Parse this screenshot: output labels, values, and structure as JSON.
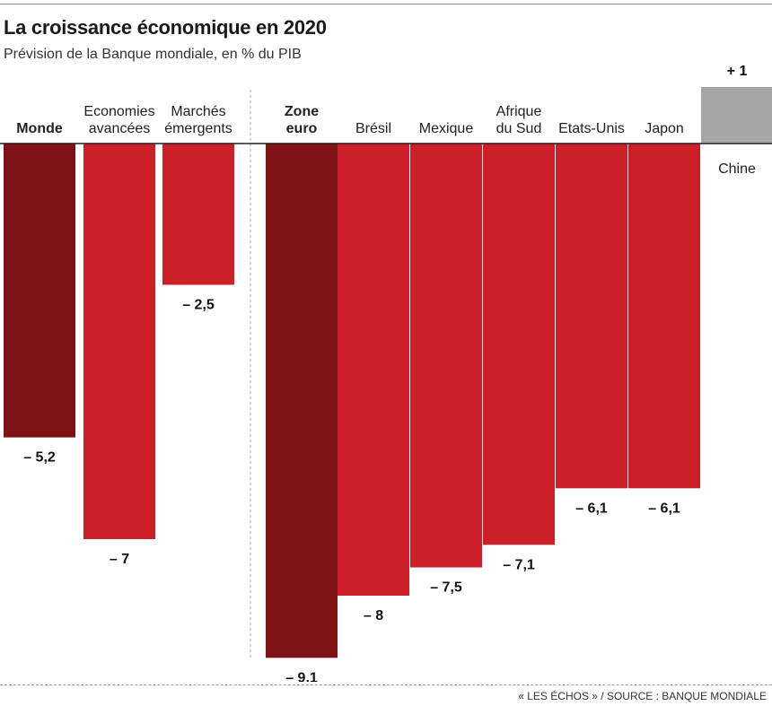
{
  "title": "La croissance économique en 2020",
  "subtitle": "Prévision de la Banque mondiale, en % du PIB",
  "source": "« LES ÉCHOS » / SOURCE : BANQUE MONDIALE",
  "colors": {
    "world_zone": "#7f1215",
    "country": "#cc1f27",
    "positive": "#a6a6a6",
    "axis": "#222222"
  },
  "chart_data": {
    "type": "bar",
    "title": "La croissance économique en 2020",
    "subtitle": "Prévision de la Banque mondiale, en % du PIB",
    "ylim": [
      -9.1,
      1
    ],
    "grid": false,
    "legend": "none",
    "categories": [
      "Monde",
      "Economies avancées",
      "Marchés émergents",
      "Zone euro",
      "Brésil",
      "Mexique",
      "Afrique du Sud",
      "Etats-Unis",
      "Japon",
      "Chine"
    ],
    "values": [
      -5.2,
      -7,
      -2.5,
      -9.1,
      -8,
      -7.5,
      -7.1,
      -6.1,
      -6.1,
      1
    ],
    "bars": [
      {
        "label_lines": [
          "Monde"
        ],
        "value": -5.2,
        "value_label": "– 5,2",
        "bold_label": true,
        "kind": "world_zone"
      },
      {
        "label_lines": [
          "Economies",
          "avancées"
        ],
        "value": -7,
        "value_label": "– 7",
        "bold_label": false,
        "kind": "country"
      },
      {
        "label_lines": [
          "Marchés",
          "émergents"
        ],
        "value": -2.5,
        "value_label": "– 2,5",
        "bold_label": false,
        "kind": "country"
      },
      {
        "label_lines": [
          "Zone",
          "euro"
        ],
        "value": -9.1,
        "value_label": "– 9,1",
        "bold_label": true,
        "kind": "world_zone"
      },
      {
        "label_lines": [
          "Brésil"
        ],
        "value": -8,
        "value_label": "– 8",
        "bold_label": false,
        "kind": "country"
      },
      {
        "label_lines": [
          "Mexique"
        ],
        "value": -7.5,
        "value_label": "– 7,5",
        "bold_label": false,
        "kind": "country"
      },
      {
        "label_lines": [
          "Afrique",
          "du Sud"
        ],
        "value": -7.1,
        "value_label": "– 7,1",
        "bold_label": false,
        "kind": "country"
      },
      {
        "label_lines": [
          "Etats-Unis"
        ],
        "value": -6.1,
        "value_label": "– 6,1",
        "bold_label": false,
        "kind": "country"
      },
      {
        "label_lines": [
          "Japon"
        ],
        "value": -6.1,
        "value_label": "– 6,1",
        "bold_label": false,
        "kind": "country"
      },
      {
        "label_lines": [
          "Chine"
        ],
        "value": 1,
        "value_label": "+ 1",
        "bold_label": false,
        "kind": "positive"
      }
    ]
  }
}
